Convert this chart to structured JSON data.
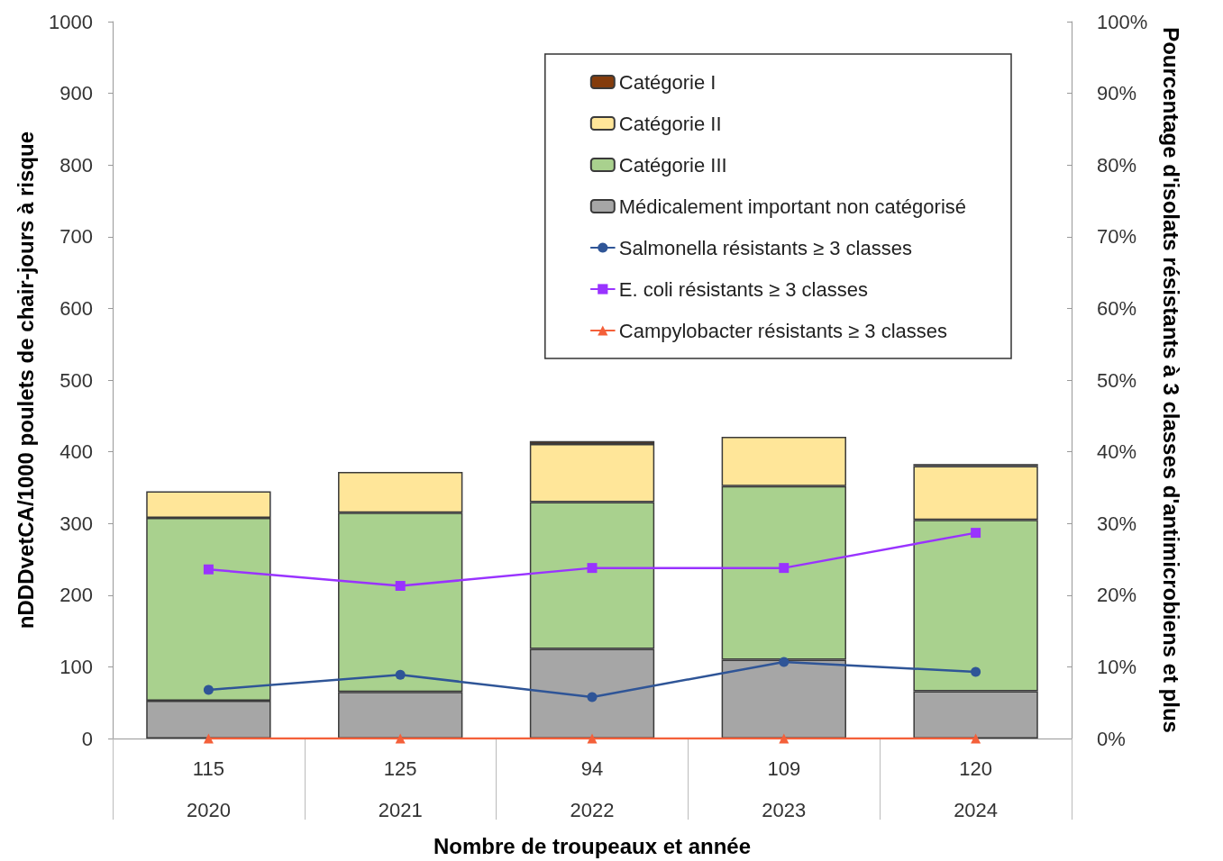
{
  "chart_data": {
    "type": "bar",
    "stacked": true,
    "xlabel": "Nombre de troupeaux et année",
    "ylabel": "nDDDvetCA/1000 poulets de chair-jours à risque",
    "y2label": "Pourcentage d'isolats résistants à 3 classes d'antimicrobiens et plus",
    "categories": [
      "115\n2020",
      "125\n2021",
      "94\n2022",
      "109\n2023",
      "120\n2024"
    ],
    "series": [
      {
        "name": "Médicalement important non catégorisé",
        "color": "#a6a6a6",
        "values": [
          53,
          65,
          125,
          110,
          66
        ]
      },
      {
        "name": "Catégorie III",
        "color": "#a9d18e",
        "values": [
          255,
          250,
          205,
          242,
          239
        ]
      },
      {
        "name": "Catégorie II",
        "color": "#ffe699",
        "values": [
          37,
          57,
          81,
          69,
          75
        ]
      },
      {
        "name": "Catégorie I",
        "color": "#843c0c",
        "values": [
          0,
          0,
          4,
          0,
          3
        ]
      },
      {
        "name": "Salmonella résistants ≥ 3 classes",
        "type": "line",
        "axis": "y2",
        "marker": "circle",
        "color": "#2f5597",
        "values": [
          6.8,
          8.9,
          5.8,
          10.7,
          9.3
        ]
      },
      {
        "name": "E. coli résistants ≥ 3 classes",
        "type": "line",
        "axis": "y2",
        "marker": "square",
        "color": "#9933ff",
        "values": [
          23.6,
          21.3,
          23.8,
          23.8,
          28.7
        ]
      },
      {
        "name": "Campylobacter résistants ≥ 3 classes",
        "type": "line",
        "axis": "y2",
        "marker": "triangle",
        "color": "#f4603a",
        "values": [
          0,
          0,
          0,
          0,
          0
        ]
      }
    ],
    "ylim": [
      0,
      1000
    ],
    "yticks": [
      0,
      100,
      200,
      300,
      400,
      500,
      600,
      700,
      800,
      900,
      1000
    ],
    "y2lim": [
      0,
      100
    ],
    "y2ticks": [
      {
        "value": 0,
        "label": "0%"
      },
      {
        "value": 10,
        "label": "10%"
      },
      {
        "value": 20,
        "label": "20%"
      },
      {
        "value": 30,
        "label": "30%"
      },
      {
        "value": 40,
        "label": "40%"
      },
      {
        "value": 50,
        "label": "50%"
      },
      {
        "value": 60,
        "label": "60%"
      },
      {
        "value": 70,
        "label": "70%"
      },
      {
        "value": 80,
        "label": "80%"
      },
      {
        "value": 90,
        "label": "90%"
      },
      {
        "value": 100,
        "label": "100%"
      }
    ],
    "legend": "top right",
    "grid": false
  }
}
